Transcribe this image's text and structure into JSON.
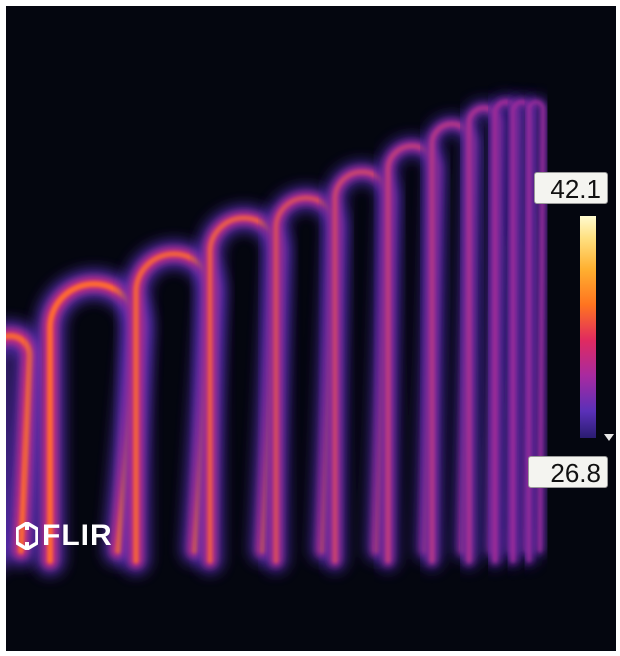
{
  "thermal_view": {
    "brand": "FLIR",
    "scale_max": "42.1",
    "scale_min": "26.8",
    "palette": [
      "#fffbd0",
      "#ffe080",
      "#ffb030",
      "#ff7420",
      "#e02a60",
      "#a82aa0",
      "#5a30b8",
      "#2a1c70"
    ],
    "background_color": "#04060f"
  },
  "icons": {
    "logo": "flir-logo-icon",
    "scale_marker": "triangle-down-icon"
  }
}
